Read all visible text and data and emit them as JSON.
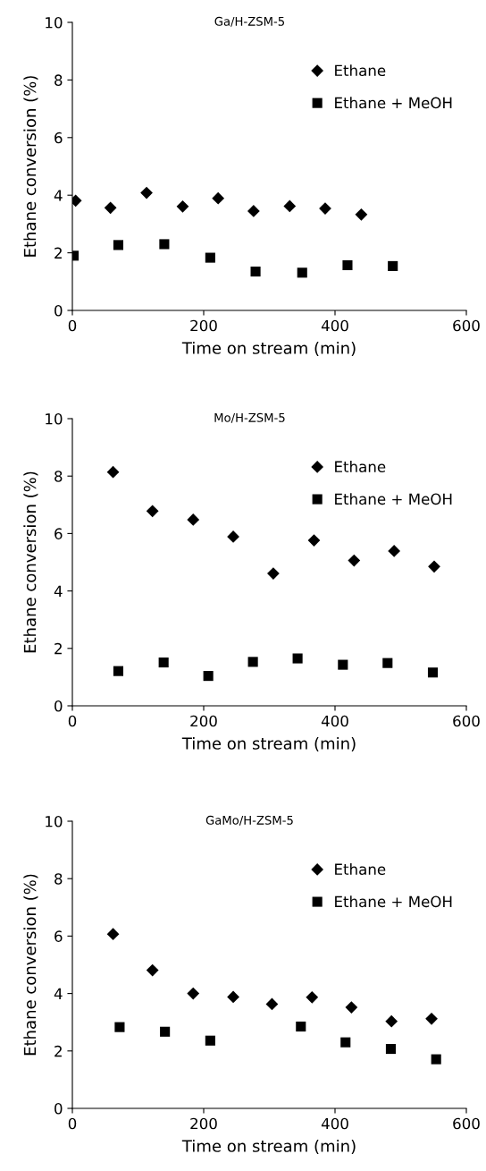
{
  "chart_data": [
    {
      "type": "scatter",
      "title": "Ga/H-ZSM-5",
      "xlabel": "Time on stream (min)",
      "ylabel": "Ethane conversion (%)",
      "xlim": [
        0,
        600
      ],
      "ylim": [
        0,
        10
      ],
      "xticks": [
        0,
        200,
        400,
        600
      ],
      "yticks": [
        0,
        2,
        4,
        6,
        8,
        10
      ],
      "grid": false,
      "legend": "top right",
      "series": [
        {
          "name": "Ethane",
          "color": "#000000",
          "marker": "diamond",
          "x": [
            5,
            58,
            113,
            168,
            222,
            276,
            331,
            385,
            440
          ],
          "values": [
            3.81,
            3.56,
            4.08,
            3.61,
            3.89,
            3.45,
            3.62,
            3.54,
            3.33
          ]
        },
        {
          "name": "Ethane + MeOH",
          "color": "#000000",
          "marker": "square",
          "x": [
            2,
            70,
            140,
            210,
            279,
            350,
            419,
            488
          ],
          "values": [
            1.9,
            2.27,
            2.3,
            1.83,
            1.35,
            1.31,
            1.57,
            1.54
          ]
        }
      ]
    },
    {
      "type": "scatter",
      "title": "Mo/H-ZSM-5",
      "xlabel": "Time on stream (min)",
      "ylabel": "Ethane conversion (%)",
      "xlim": [
        0,
        600
      ],
      "ylim": [
        0,
        10
      ],
      "xticks": [
        0,
        200,
        400,
        600
      ],
      "yticks": [
        0,
        2,
        4,
        6,
        8,
        10
      ],
      "grid": false,
      "legend": "top right",
      "series": [
        {
          "name": "Ethane",
          "color": "#000000",
          "marker": "diamond",
          "x": [
            62,
            122,
            184,
            245,
            306,
            368,
            429,
            490,
            551
          ],
          "values": [
            8.14,
            6.78,
            6.48,
            5.89,
            4.61,
            5.76,
            5.06,
            5.39,
            4.85
          ]
        },
        {
          "name": "Ethane + MeOH",
          "color": "#000000",
          "marker": "square",
          "x": [
            70,
            139,
            207,
            275,
            343,
            412,
            480,
            549
          ],
          "values": [
            1.21,
            1.51,
            1.04,
            1.53,
            1.65,
            1.43,
            1.49,
            1.16
          ]
        }
      ]
    },
    {
      "type": "scatter",
      "title": "GaMo/H-ZSM-5",
      "xlabel": "Time on stream (min)",
      "ylabel": "Ethane conversion (%)",
      "xlim": [
        0,
        600
      ],
      "ylim": [
        0,
        10
      ],
      "xticks": [
        0,
        200,
        400,
        600
      ],
      "yticks": [
        0,
        2,
        4,
        6,
        8,
        10
      ],
      "grid": false,
      "legend": "top right",
      "series": [
        {
          "name": "Ethane",
          "color": "#000000",
          "marker": "diamond",
          "x": [
            62,
            122,
            184,
            245,
            304,
            365,
            425,
            486,
            547
          ],
          "values": [
            6.07,
            4.81,
            4.0,
            3.88,
            3.63,
            3.87,
            3.52,
            3.03,
            3.12
          ]
        },
        {
          "name": "Ethane + MeOH",
          "color": "#000000",
          "marker": "square",
          "x": [
            72,
            141,
            210,
            348,
            416,
            485,
            554
          ],
          "values": [
            2.83,
            2.67,
            2.36,
            2.85,
            2.3,
            2.07,
            1.71
          ]
        }
      ]
    }
  ]
}
